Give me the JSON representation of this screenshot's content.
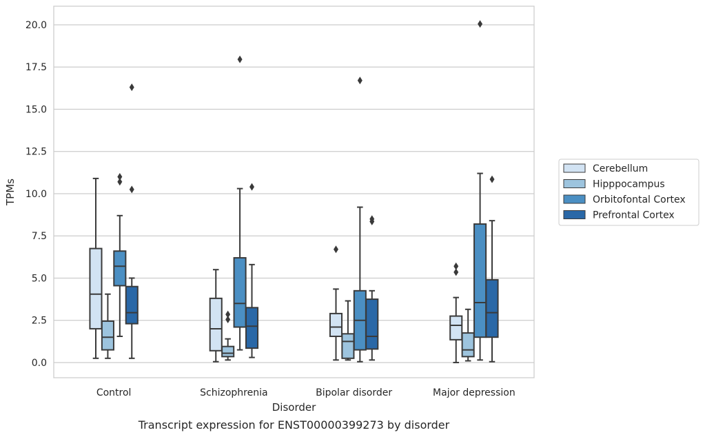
{
  "chart_data": {
    "type": "box",
    "caption": "Transcript expression for ENST00000399273 by disorder",
    "xlabel": "Disorder",
    "ylabel": "TPMs",
    "ylim": [
      -0.9,
      21.1
    ],
    "yticks": [
      0.0,
      2.5,
      5.0,
      7.5,
      10.0,
      12.5,
      15.0,
      17.5,
      20.0
    ],
    "ytick_labels": [
      "0.0",
      "2.5",
      "5.0",
      "7.5",
      "10.0",
      "12.5",
      "15.0",
      "17.5",
      "20.0"
    ],
    "grid": "horizontal",
    "legend_position": "right",
    "categories": [
      "Control",
      "Schizophrenia",
      "Bipolar disorder",
      "Major depression"
    ],
    "series": [
      {
        "name": "Cerebellum",
        "color": "#d2e3f3",
        "boxes": [
          {
            "whislo": 0.25,
            "q1": 2.0,
            "med": 4.05,
            "q3": 6.75,
            "whishi": 10.9,
            "fliers": []
          },
          {
            "whislo": 0.05,
            "q1": 0.7,
            "med": 2.0,
            "q3": 3.8,
            "whishi": 5.5,
            "fliers": []
          },
          {
            "whislo": 0.15,
            "q1": 1.55,
            "med": 2.1,
            "q3": 2.9,
            "whishi": 4.35,
            "fliers": [
              6.7
            ]
          },
          {
            "whislo": 0.0,
            "q1": 1.35,
            "med": 2.2,
            "q3": 2.75,
            "whishi": 3.85,
            "fliers": [
              5.35,
              5.7
            ]
          }
        ]
      },
      {
        "name": "Hipppocampus",
        "color": "#9dc4de",
        "boxes": [
          {
            "whislo": 0.25,
            "q1": 0.75,
            "med": 1.5,
            "q3": 2.45,
            "whishi": 4.05,
            "fliers": []
          },
          {
            "whislo": 0.15,
            "q1": 0.35,
            "med": 0.55,
            "q3": 0.95,
            "whishi": 1.4,
            "fliers": [
              2.55,
              2.85
            ]
          },
          {
            "whislo": 0.15,
            "q1": 0.25,
            "med": 1.25,
            "q3": 1.7,
            "whishi": 3.65,
            "fliers": []
          },
          {
            "whislo": 0.1,
            "q1": 0.35,
            "med": 0.75,
            "q3": 1.75,
            "whishi": 3.15,
            "fliers": []
          }
        ]
      },
      {
        "name": "Orbitofontal Cortex",
        "color": "#4b8fc3",
        "boxes": [
          {
            "whislo": 1.55,
            "q1": 4.55,
            "med": 5.7,
            "q3": 6.6,
            "whishi": 8.7,
            "fliers": [
              10.7,
              11.0
            ]
          },
          {
            "whislo": 0.75,
            "q1": 2.1,
            "med": 3.5,
            "q3": 6.2,
            "whishi": 10.3,
            "fliers": [
              17.95
            ]
          },
          {
            "whislo": 0.05,
            "q1": 0.75,
            "med": 2.5,
            "q3": 4.25,
            "whishi": 9.2,
            "fliers": [
              16.7
            ]
          },
          {
            "whislo": 0.15,
            "q1": 1.5,
            "med": 3.55,
            "q3": 8.2,
            "whishi": 11.2,
            "fliers": [
              20.05
            ]
          }
        ]
      },
      {
        "name": "Prefrontal Cortex",
        "color": "#2a68a7",
        "boxes": [
          {
            "whislo": 0.25,
            "q1": 2.3,
            "med": 2.95,
            "q3": 4.5,
            "whishi": 5.0,
            "fliers": [
              10.25,
              16.3
            ]
          },
          {
            "whislo": 0.3,
            "q1": 0.85,
            "med": 2.15,
            "q3": 3.25,
            "whishi": 5.8,
            "fliers": [
              10.4
            ]
          },
          {
            "whislo": 0.15,
            "q1": 0.8,
            "med": 1.55,
            "q3": 3.75,
            "whishi": 4.25,
            "fliers": [
              8.35,
              8.5
            ]
          },
          {
            "whislo": 0.05,
            "q1": 1.5,
            "med": 2.95,
            "q3": 4.9,
            "whishi": 8.4,
            "fliers": [
              10.85
            ]
          }
        ]
      }
    ]
  }
}
